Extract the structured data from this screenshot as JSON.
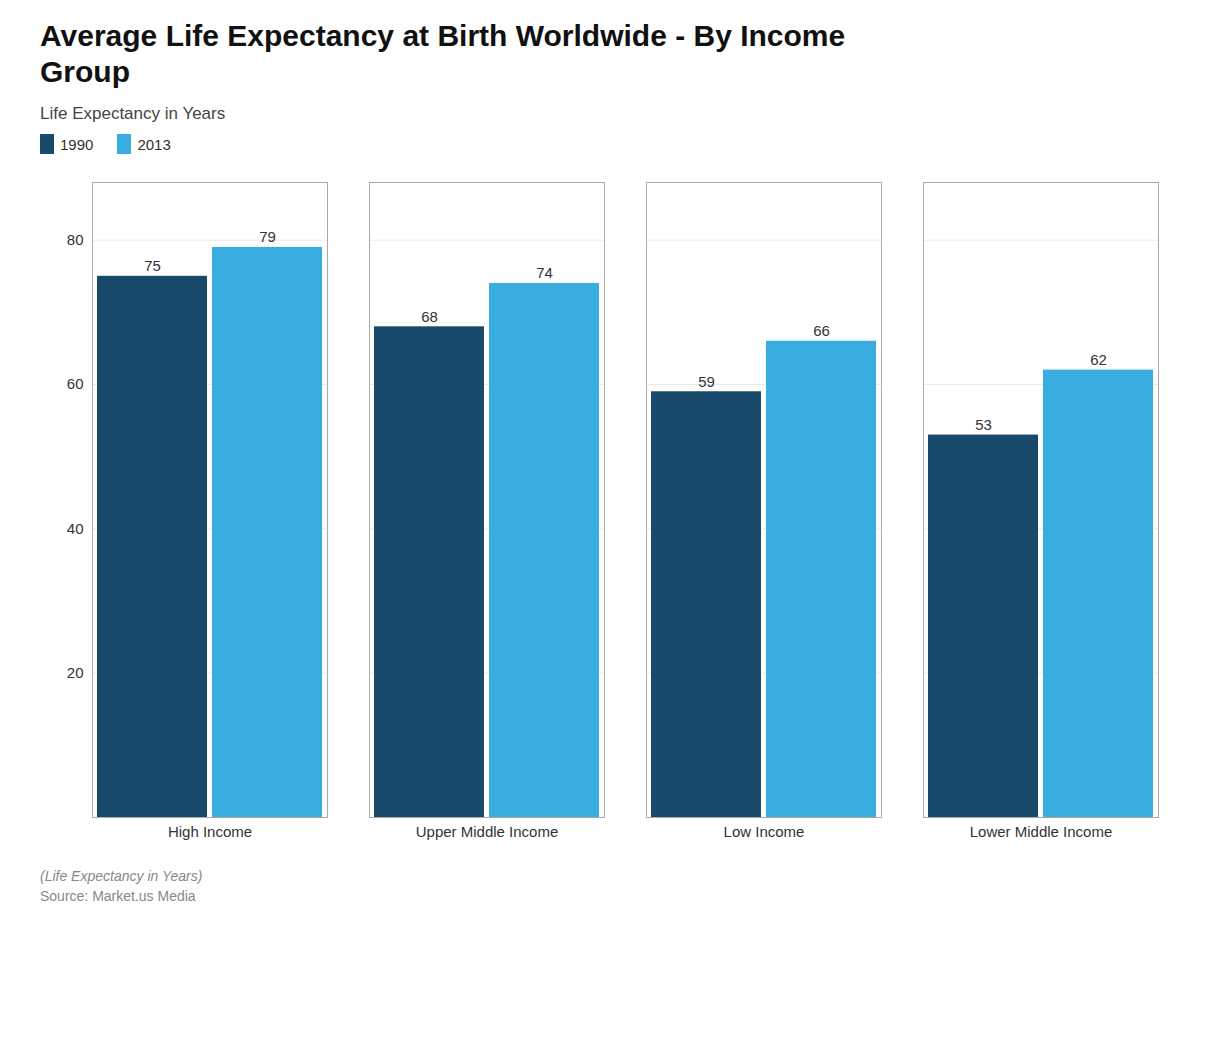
{
  "chart_data": {
    "type": "bar",
    "title": "Average Life Expectancy at Birth Worldwide - By Income\nGroup",
    "subtitle": "Life Expectancy in Years",
    "categories": [
      "High Income",
      "Upper Middle Income",
      "Low Income",
      "Lower Middle Income"
    ],
    "series": [
      {
        "name": "1990",
        "color": "#1a4a6b",
        "values": [
          75,
          68,
          59,
          53
        ]
      },
      {
        "name": "2013",
        "color": "#3aade0",
        "values": [
          79,
          74,
          66,
          62
        ]
      }
    ],
    "ylim": [
      0,
      88
    ],
    "yticks": [
      20,
      40,
      60,
      80
    ],
    "grid": true,
    "legend": "upper left",
    "data_labels": true,
    "annotations": [
      "(Life Expectancy in Years)",
      "Source: Market.us Media"
    ]
  }
}
